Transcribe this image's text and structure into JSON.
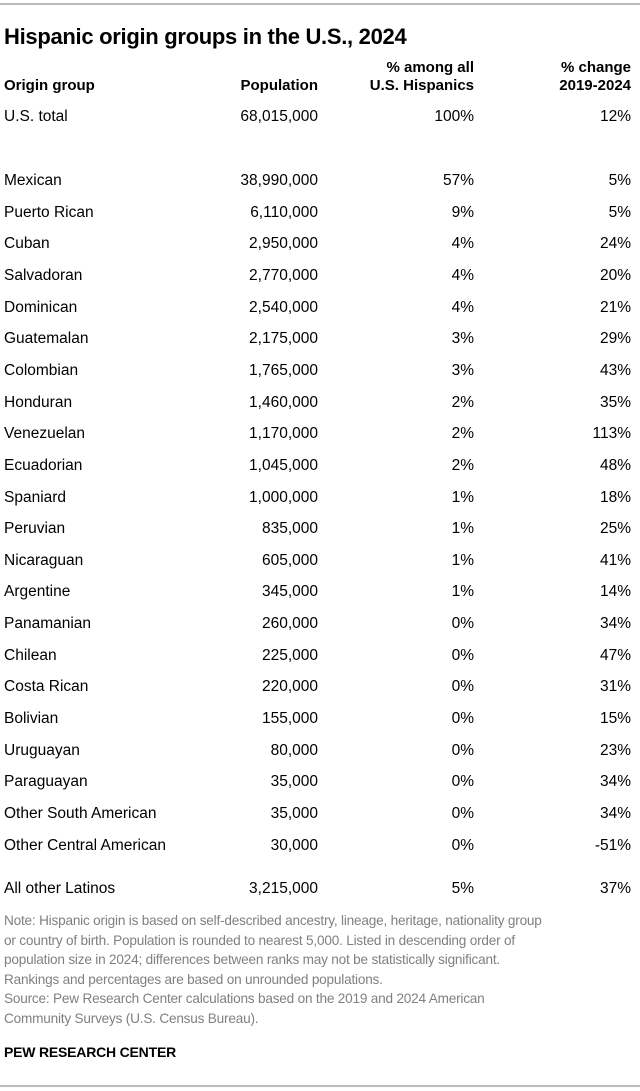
{
  "chart_data": {
    "type": "table",
    "title": "Hispanic origin groups in the U.S., 2024",
    "columns": [
      [
        "Origin group"
      ],
      [
        "Population"
      ],
      [
        "% among all",
        "U.S. Hispanics"
      ],
      [
        "% change",
        "2019-2024"
      ]
    ],
    "rows": [
      {
        "label": "U.S. total",
        "population": "68,015,000",
        "share": "100%",
        "change": "12%"
      },
      {
        "label": "Mexican",
        "population": "38,990,000",
        "share": "57%",
        "change": "5%"
      },
      {
        "label": "Puerto Rican",
        "population": "6,110,000",
        "share": "9%",
        "change": "5%"
      },
      {
        "label": "Cuban",
        "population": "2,950,000",
        "share": "4%",
        "change": "24%"
      },
      {
        "label": "Salvadoran",
        "population": "2,770,000",
        "share": "4%",
        "change": "20%"
      },
      {
        "label": "Dominican",
        "population": "2,540,000",
        "share": "4%",
        "change": "21%"
      },
      {
        "label": "Guatemalan",
        "population": "2,175,000",
        "share": "3%",
        "change": "29%"
      },
      {
        "label": "Colombian",
        "population": "1,765,000",
        "share": "3%",
        "change": "43%"
      },
      {
        "label": "Honduran",
        "population": "1,460,000",
        "share": "2%",
        "change": "35%"
      },
      {
        "label": "Venezuelan",
        "population": "1,170,000",
        "share": "2%",
        "change": "113%"
      },
      {
        "label": "Ecuadorian",
        "population": "1,045,000",
        "share": "2%",
        "change": "48%"
      },
      {
        "label": "Spaniard",
        "population": "1,000,000",
        "share": "1%",
        "change": "18%"
      },
      {
        "label": "Peruvian",
        "population": "835,000",
        "share": "1%",
        "change": "25%"
      },
      {
        "label": "Nicaraguan",
        "population": "605,000",
        "share": "1%",
        "change": "41%"
      },
      {
        "label": "Argentine",
        "population": "345,000",
        "share": "1%",
        "change": "14%"
      },
      {
        "label": "Panamanian",
        "population": "260,000",
        "share": "0%",
        "change": "34%"
      },
      {
        "label": "Chilean",
        "population": "225,000",
        "share": "0%",
        "change": "47%"
      },
      {
        "label": "Costa Rican",
        "population": "220,000",
        "share": "0%",
        "change": "31%"
      },
      {
        "label": "Bolivian",
        "population": "155,000",
        "share": "0%",
        "change": "15%"
      },
      {
        "label": "Uruguayan",
        "population": "80,000",
        "share": "0%",
        "change": "23%"
      },
      {
        "label": "Paraguayan",
        "population": "35,000",
        "share": "0%",
        "change": "34%"
      },
      {
        "label": "Other South American",
        "population": "35,000",
        "share": "0%",
        "change": "34%"
      },
      {
        "label": "Other Central American",
        "population": "30,000",
        "share": "0%",
        "change": "-51%"
      },
      {
        "label": "All other Latinos",
        "population": "3,215,000",
        "share": "5%",
        "change": "37%"
      }
    ]
  },
  "notes": [
    "Note: Hispanic origin is based on self-described ancestry, lineage, heritage, nationality group",
    "or country of birth. Population is rounded to nearest 5,000. Listed in descending order of",
    "population size in 2024; differences between ranks may not be statistically significant.",
    "Rankings and percentages are based on unrounded populations.",
    "Source: Pew Research Center calculations based on the 2019 and 2024 American",
    "Community Surveys (U.S. Census Bureau)."
  ],
  "brand": "PEW RESEARCH CENTER",
  "colors": {
    "text": "#000000",
    "note": "#808080",
    "rule": "#bbbbbb"
  }
}
